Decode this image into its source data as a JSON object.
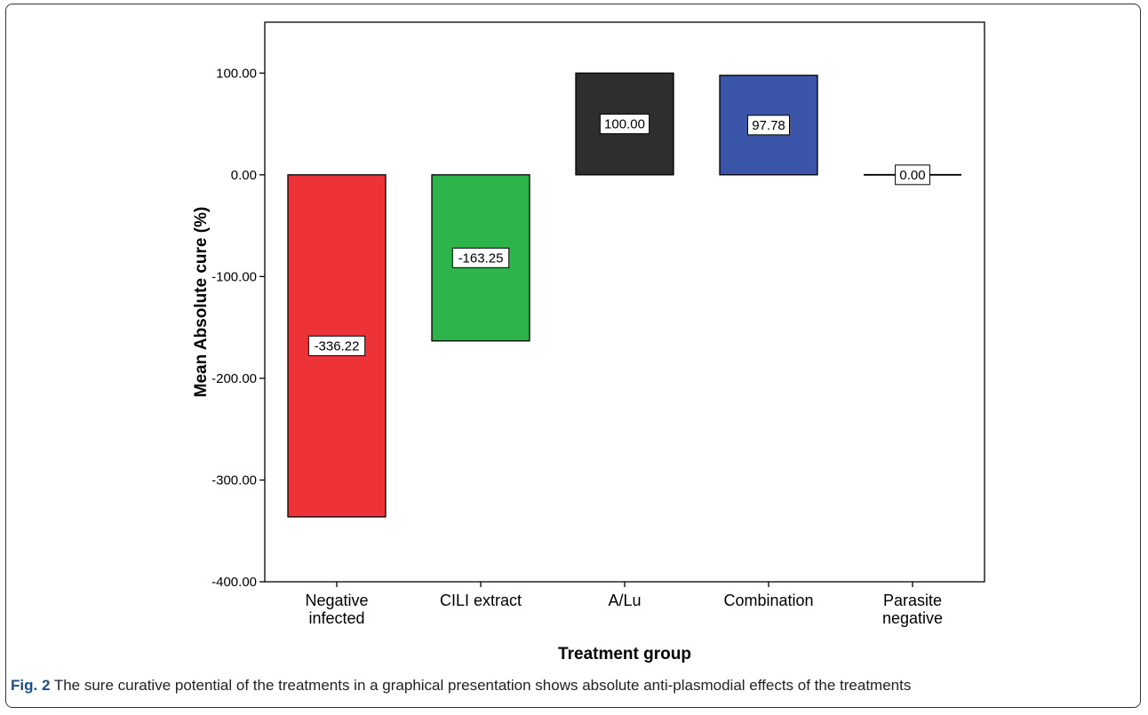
{
  "figure": {
    "number": "Fig. 2",
    "caption": "The sure curative potential of the treatments in a graphical presentation shows absolute anti-plasmodial effects of the treatments"
  },
  "chart_data": {
    "type": "bar",
    "categories": [
      [
        "Negative",
        "infected"
      ],
      [
        "CILI extract"
      ],
      [
        "A/Lu"
      ],
      [
        "Combination"
      ],
      [
        "Parasite",
        "negative"
      ]
    ],
    "values": [
      -336.22,
      -163.25,
      100.0,
      97.78,
      0.0
    ],
    "data_labels": [
      "-336.22",
      "-163.25",
      "100.00",
      "97.78",
      "0.00"
    ],
    "colors": [
      "#ee3338",
      "#2db44a",
      "#2e2e2e",
      "#3b55a8",
      "#000000"
    ],
    "xlabel": "Treatment group",
    "ylabel": "Mean Absolute cure (%)",
    "ylim": [
      -400,
      150
    ],
    "yticks": [
      100,
      0,
      -100,
      -200,
      -300,
      -400
    ],
    "ytick_labels": [
      "100.00",
      "0.00",
      "-100.00",
      "-200.00",
      "-300.00",
      "-400.00"
    ],
    "grid": false,
    "legend": "none"
  }
}
